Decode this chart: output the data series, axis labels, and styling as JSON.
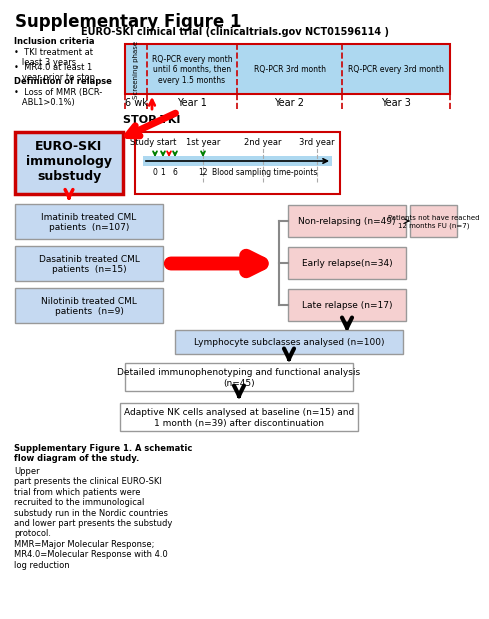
{
  "title": "Supplementary Figure 1",
  "subtitle": "EURO-SKI clinical trial (clinicaltrials.gov NCT01596114 )",
  "bg_color": "#ffffff",
  "light_blue": "#add8f0",
  "light_blue_box": "#c5d9f1",
  "light_pink": "#f5d0d0",
  "inclusion_text_bold": "Inclusion criteria",
  "inclusion_lines": [
    "•  TKI treatment at\n   least 3 years",
    "•  MR4.0 at least 1\n   year prior to stop"
  ],
  "relapse_bold": "Definition of relapse",
  "relapse_lines": [
    "•  Loss of MMR (BCR-\n   ABL1>0.1%)"
  ],
  "rq_pcr1": "RQ-PCR every month\nuntil 6 months, then\nevery 1.5 months",
  "rq_pcr2": "RQ-PCR 3rd month",
  "rq_pcr3": "RQ-PCR every 3rd month",
  "year_labels": [
    "6 wk",
    "Year 1",
    "Year 2",
    "Year 3"
  ],
  "stop_tki": "STOP TKI",
  "euro_ski_box": "EURO-SKI\nimmunology\nsubstudy",
  "year_labels2": [
    "Study start",
    "1st year",
    "2nd year",
    "3rd year"
  ],
  "timepoints": "Blood sampling time-points",
  "tick_labels": [
    "0",
    "1",
    "6",
    "12"
  ],
  "boxes_left": [
    "Imatinib treated CML\npatients  (n=107)",
    "Dasatinib treated CML\npatients  (n=15)",
    "Nilotinib treated CML\npatients  (n=9)"
  ],
  "boxes_right": [
    "Non-relapsing (n=49)",
    "Early relapse(n=34)",
    "Late relapse (n=17)"
  ],
  "patients_note": "Patients not have reached\n12 months FU (n=7)",
  "lymphocyte_box": "Lymphocyte subclasses analysed (n=100)",
  "detailed_box": "Detailed immunophenotyping and functional analysis\n(n=45)",
  "adaptive_box": "Adaptive NK cells analysed at baseline (n=15) and\n1 month (n=39) after discontinuation",
  "caption_bold": "Supplementary Figure 1. A schematic\nflow diagram of the study.",
  "caption_normal": " Upper\npart presents the clinical EURO-SKI\ntrial from which patients were\nrecruited to the immunological\nsubstudy run in the Nordic countries\nand lower part presents the substudy\nprotocol.\nMMR=Major Molecular Response;\nMR4.0=Molecular Response with 4.0\nlog reduction"
}
